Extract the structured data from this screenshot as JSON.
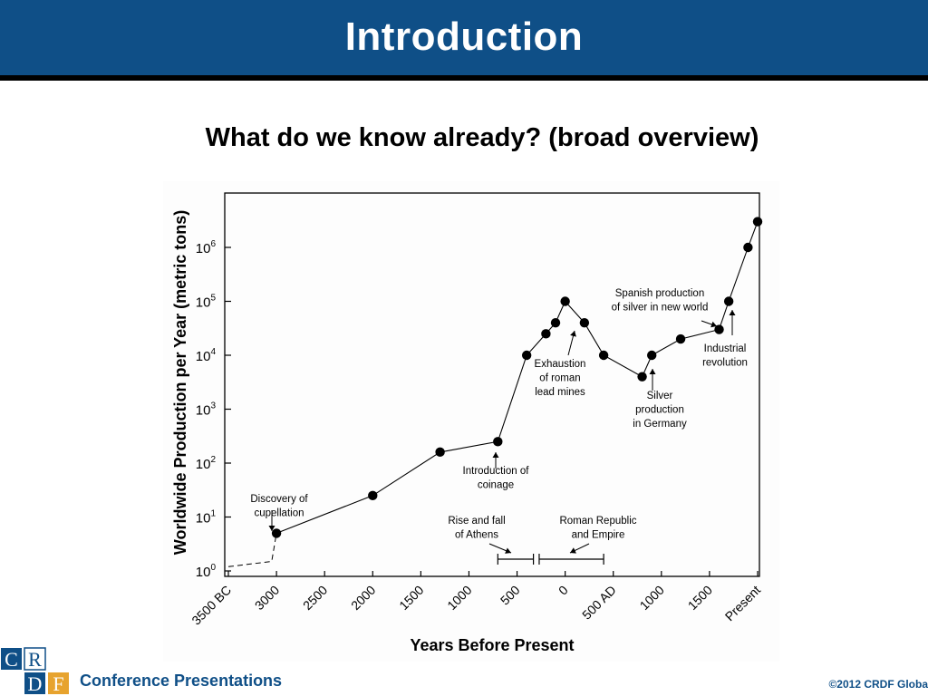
{
  "slide": {
    "title": "Introduction",
    "subtitle": "What do we know already? (broad overview)"
  },
  "footer": {
    "logo_letters": [
      "C",
      "R",
      "D",
      "F"
    ],
    "label": "Conference Presentations",
    "copyright": "©2012 CRDF Globa"
  },
  "colors": {
    "header_bg": "#0f4f87",
    "logo_blue": "#0f4f87",
    "logo_orange": "#e7a32e"
  },
  "chart_data": {
    "type": "line",
    "ylabel": "Worldwide Production per Year (metric tons)",
    "xlabel": "Years Before Present",
    "y_scale": "log",
    "ylim": [
      1,
      3000000
    ],
    "xlim": [
      -3500,
      2000
    ],
    "y_ticks": [
      {
        "exp": 0,
        "label": "10",
        "sup": "0"
      },
      {
        "exp": 1,
        "label": "10",
        "sup": "1"
      },
      {
        "exp": 2,
        "label": "10",
        "sup": "2"
      },
      {
        "exp": 3,
        "label": "10",
        "sup": "3"
      },
      {
        "exp": 4,
        "label": "10",
        "sup": "4"
      },
      {
        "exp": 5,
        "label": "10",
        "sup": "5"
      },
      {
        "exp": 6,
        "label": "10",
        "sup": "6"
      }
    ],
    "x_ticks": [
      {
        "x": -3500,
        "label": "3500 BC"
      },
      {
        "x": -3000,
        "label": "3000"
      },
      {
        "x": -2500,
        "label": "2500"
      },
      {
        "x": -2000,
        "label": "2000"
      },
      {
        "x": -1500,
        "label": "1500"
      },
      {
        "x": -1000,
        "label": "1000"
      },
      {
        "x": -500,
        "label": "500"
      },
      {
        "x": 0,
        "label": "0"
      },
      {
        "x": 500,
        "label": "500 AD"
      },
      {
        "x": 1000,
        "label": "1000"
      },
      {
        "x": 1500,
        "label": "1500"
      },
      {
        "x": 2000,
        "label": "Present"
      }
    ],
    "dashed_series": {
      "x": [
        -3500,
        -3050,
        -3000
      ],
      "y": [
        1.2,
        1.5,
        5
      ]
    },
    "series": [
      {
        "x": [
          -3000,
          -2000,
          -1300,
          -700,
          -400,
          -200,
          -100,
          0,
          200,
          400,
          800,
          900,
          1200,
          1600,
          1700,
          1900,
          2000
        ],
        "y": [
          5,
          25,
          160,
          250,
          10000,
          25000,
          40000,
          100000,
          40000,
          10000,
          4000,
          10000,
          20000,
          30000,
          100000,
          1000000,
          3000000
        ]
      }
    ],
    "annotations": [
      {
        "text": [
          "Discovery of",
          "cupellation"
        ]
      },
      {
        "text": [
          "Introduction of",
          "coinage"
        ]
      },
      {
        "text": [
          "Exhaustion",
          "of roman",
          "lead mines"
        ]
      },
      {
        "text": [
          "Spanish production",
          "of silver in new world"
        ]
      },
      {
        "text": [
          "Industrial",
          "revolution"
        ]
      },
      {
        "text": [
          "Silver",
          "production",
          "in Germany"
        ]
      },
      {
        "text": [
          "Rise and fall",
          "of Athens"
        ]
      },
      {
        "text": [
          "Roman Republic",
          "and Empire"
        ]
      }
    ],
    "ranges": [
      {
        "from": -700,
        "to": -330
      },
      {
        "from": -270,
        "to": 400
      }
    ]
  }
}
